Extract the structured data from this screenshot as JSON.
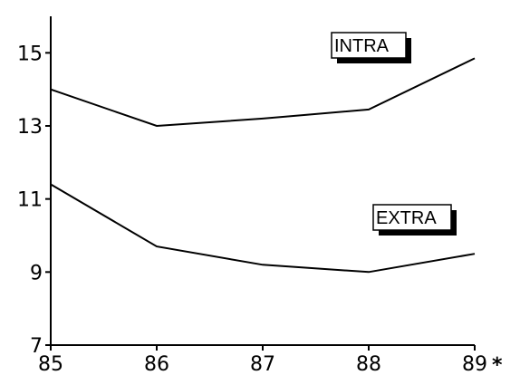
{
  "chart_data": {
    "type": "line",
    "x": [
      85,
      86,
      87,
      88,
      89
    ],
    "xlim": [
      85,
      89
    ],
    "ylim": [
      7,
      16
    ],
    "yticks": [
      7,
      9,
      11,
      13,
      15
    ],
    "grid": false,
    "series": [
      {
        "name": "INTRA",
        "values": [
          14.0,
          13.0,
          13.2,
          13.45,
          14.85
        ]
      },
      {
        "name": "EXTRA",
        "values": [
          11.4,
          9.7,
          9.2,
          9.0,
          9.5
        ]
      }
    ],
    "footnote_marker": "*",
    "line_color": "#000000"
  }
}
